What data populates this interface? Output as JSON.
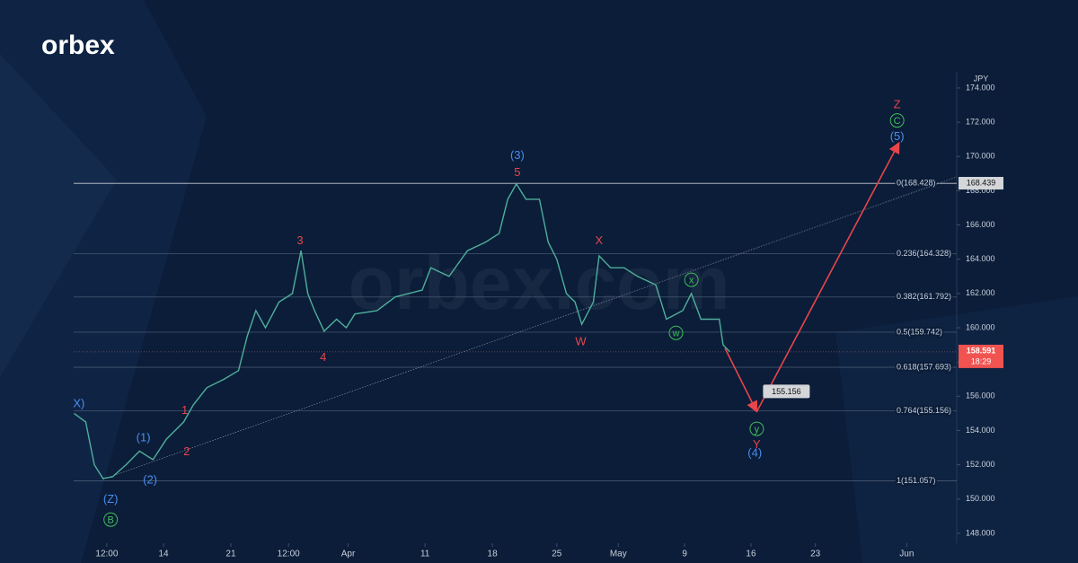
{
  "logo": "orbex",
  "watermark": "orbex.com",
  "chart_data": {
    "type": "line",
    "currency": "JPY",
    "color": "#4fae9c",
    "x": [
      4.7,
      5.9,
      6.8,
      7.7,
      8.7,
      10.1,
      11.5,
      12.9,
      14.3,
      16.1,
      17.1,
      18.5,
      20.3,
      21.8,
      22.7,
      23.6,
      24.6,
      26.0,
      27.4,
      28.3,
      29.0,
      29.7,
      30.7,
      32.0,
      33.0,
      33.9,
      36.2,
      38.1,
      40.9,
      41.8,
      43.7,
      45.6,
      47.5,
      48.9,
      49.8,
      50.7,
      51.7,
      53.1,
      54.0,
      54.9,
      55.9,
      56.8,
      57.5,
      58.7,
      59.3,
      60.5,
      61.9,
      63.3,
      65.2,
      66.3,
      68.0,
      68.9,
      69.9,
      71.8,
      72.2,
      72.9
    ],
    "values": [
      155.0,
      154.5,
      152.0,
      151.2,
      151.3,
      152.0,
      152.8,
      152.3,
      153.5,
      154.5,
      155.5,
      156.5,
      157.0,
      157.5,
      159.5,
      161.0,
      160.0,
      161.5,
      162.0,
      164.5,
      162.0,
      161.0,
      159.8,
      160.5,
      160.0,
      160.8,
      161.0,
      161.8,
      162.2,
      163.5,
      163.0,
      164.5,
      165.0,
      165.5,
      167.5,
      168.4,
      167.5,
      167.5,
      165.0,
      164.0,
      162.0,
      161.5,
      160.2,
      161.5,
      164.2,
      163.5,
      163.5,
      163.0,
      162.5,
      160.5,
      161.0,
      162.0,
      160.5,
      160.5,
      159.0,
      158.6
    ],
    "xlim": [
      4.65,
      96.5
    ],
    "xticks": [
      {
        "value": 8.1,
        "label": "12:00"
      },
      14,
      21,
      {
        "value": 27.0,
        "label": "12:00"
      },
      {
        "value": 33.2,
        "label": "Apr"
      },
      {
        "value": 41.2,
        "label": "11"
      },
      {
        "value": 48.2,
        "label": "18"
      },
      {
        "value": 54.9,
        "label": "25"
      },
      {
        "value": 61.3,
        "label": "May"
      },
      {
        "value": 68.2,
        "label": "9"
      },
      {
        "value": 75.1,
        "label": "16"
      },
      {
        "value": 81.8,
        "label": "23"
      },
      {
        "value": 91.3,
        "label": "Jun"
      }
    ],
    "ylim": [
      147.42,
      174.94
    ],
    "yticks": [
      {
        "value": 148,
        "label": "148.000"
      },
      {
        "value": 150,
        "label": "150.000"
      },
      {
        "value": 152,
        "label": "152.000"
      },
      {
        "value": 154,
        "label": "154.000"
      },
      {
        "value": 156,
        "label": "156.000"
      },
      {
        "value": 158,
        "label": "158.000"
      },
      {
        "value": 160,
        "label": "160.000"
      },
      {
        "value": 162,
        "label": "162.000"
      },
      {
        "value": 164,
        "label": "164.000"
      },
      {
        "value": 166,
        "label": "166.000"
      },
      {
        "value": 168,
        "label": "168.000"
      },
      {
        "value": 170,
        "label": "170.000"
      },
      {
        "value": 172,
        "label": "172.000"
      },
      {
        "value": 174,
        "label": "174.000"
      }
    ],
    "fib_levels": [
      {
        "value": 168.428,
        "label": "0(168.428)"
      },
      {
        "value": 164.328,
        "label": "0.236(164.328)"
      },
      {
        "value": 161.792,
        "label": "0.382(161.792)"
      },
      {
        "value": 159.742,
        "label": "0.5(159.742)"
      },
      {
        "value": 157.693,
        "label": "0.618(157.693)"
      },
      {
        "value": 155.156,
        "label": "0.764(155.156)"
      },
      {
        "value": 151.057,
        "label": "1(151.057)"
      }
    ],
    "high_price": 168.439,
    "current_price": {
      "value": 158.591,
      "time": "18:29"
    },
    "target": 155.156,
    "trendline": {
      "x": [
        7.7,
        96.5
      ],
      "y": [
        151.15,
        168.8
      ]
    },
    "projection": {
      "x": [
        72.4,
        75.7,
        90.5
      ],
      "y": [
        158.8,
        155.1,
        170.8
      ],
      "color": "#e8454c"
    },
    "annotations": [
      {
        "text": "X)",
        "x": 5.2,
        "y": 155.6,
        "color": "#4a8df0"
      },
      {
        "text": "(Z)",
        "x": 8.5,
        "y": 150.0,
        "color": "#4a8df0"
      },
      {
        "text": "B",
        "x": 8.5,
        "y": 148.8,
        "color": "#3fbf5a",
        "circle": true
      },
      {
        "text": "(1)",
        "x": 11.9,
        "y": 153.6,
        "color": "#4a8df0"
      },
      {
        "text": "(2)",
        "x": 12.6,
        "y": 151.15,
        "color": "#4a8df0"
      },
      {
        "text": "1",
        "x": 16.2,
        "y": 155.2,
        "color": "#e8454c"
      },
      {
        "text": "2",
        "x": 16.4,
        "y": 152.8,
        "color": "#e8454c"
      },
      {
        "text": "3",
        "x": 28.2,
        "y": 165.1,
        "color": "#e8454c"
      },
      {
        "text": "4",
        "x": 30.6,
        "y": 158.3,
        "color": "#e8454c"
      },
      {
        "text": "(3)",
        "x": 50.8,
        "y": 170.1,
        "color": "#4a8df0"
      },
      {
        "text": "5",
        "x": 50.8,
        "y": 169.1,
        "color": "#e8454c"
      },
      {
        "text": "X",
        "x": 59.3,
        "y": 165.1,
        "color": "#e8454c"
      },
      {
        "text": "W",
        "x": 57.4,
        "y": 159.2,
        "color": "#e8454c"
      },
      {
        "text": "x",
        "x": 68.9,
        "y": 162.8,
        "color": "#3fbf5a",
        "circle": true
      },
      {
        "text": "w",
        "x": 67.3,
        "y": 159.7,
        "color": "#3fbf5a",
        "circle": true
      },
      {
        "text": "y",
        "x": 75.7,
        "y": 154.1,
        "color": "#3fbf5a",
        "circle": true
      },
      {
        "text": "Y",
        "x": 75.7,
        "y": 153.2,
        "color": "#e8454c"
      },
      {
        "text": "(4)",
        "x": 75.5,
        "y": 152.7,
        "color": "#4a8df0"
      },
      {
        "text": "Z",
        "x": 90.3,
        "y": 173.05,
        "color": "#e8454c"
      },
      {
        "text": "C",
        "x": 90.3,
        "y": 172.1,
        "color": "#3fbf5a",
        "circle": true
      },
      {
        "text": "(5)",
        "x": 90.3,
        "y": 171.2,
        "color": "#4a8df0"
      }
    ]
  }
}
